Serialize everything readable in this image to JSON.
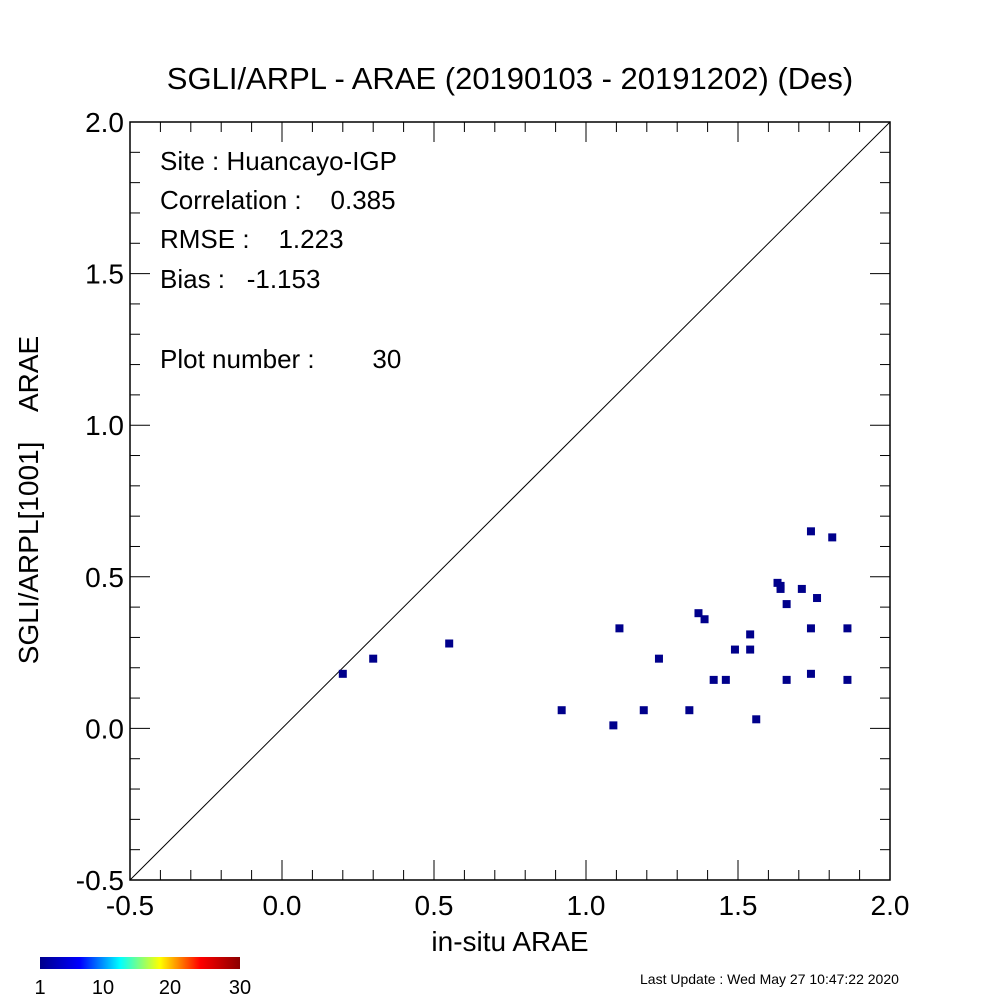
{
  "chart_data": {
    "type": "scatter",
    "title": "SGLI/ARPL - ARAE (20190103 - 20191202) (Des)",
    "xlabel": "in-situ ARAE",
    "ylabel": "SGLI/ARPL[1001]    ARAE",
    "xlim": [
      -0.5,
      2.0
    ],
    "ylim": [
      -0.5,
      2.0
    ],
    "x_ticks": [
      "-0.5",
      "0.0",
      "0.5",
      "1.0",
      "1.5",
      "2.0"
    ],
    "y_ticks": [
      "-0.5",
      "0.0",
      "0.5",
      "1.0",
      "1.5",
      "2.0"
    ],
    "one_to_one_line": true,
    "marker_color": "#00008b",
    "points": [
      {
        "x": 0.2,
        "y": 0.18
      },
      {
        "x": 0.3,
        "y": 0.23
      },
      {
        "x": 0.55,
        "y": 0.28
      },
      {
        "x": 0.92,
        "y": 0.06
      },
      {
        "x": 1.09,
        "y": 0.01
      },
      {
        "x": 1.11,
        "y": 0.33
      },
      {
        "x": 1.19,
        "y": 0.06
      },
      {
        "x": 1.24,
        "y": 0.23
      },
      {
        "x": 1.34,
        "y": 0.06
      },
      {
        "x": 1.37,
        "y": 0.38
      },
      {
        "x": 1.39,
        "y": 0.36
      },
      {
        "x": 1.42,
        "y": 0.16
      },
      {
        "x": 1.46,
        "y": 0.16
      },
      {
        "x": 1.49,
        "y": 0.26
      },
      {
        "x": 1.54,
        "y": 0.31
      },
      {
        "x": 1.54,
        "y": 0.26
      },
      {
        "x": 1.56,
        "y": 0.03
      },
      {
        "x": 1.64,
        "y": 0.47
      },
      {
        "x": 1.64,
        "y": 0.46
      },
      {
        "x": 1.66,
        "y": 0.41
      },
      {
        "x": 1.66,
        "y": 0.16
      },
      {
        "x": 1.71,
        "y": 0.46
      },
      {
        "x": 1.74,
        "y": 0.65
      },
      {
        "x": 1.74,
        "y": 0.33
      },
      {
        "x": 1.74,
        "y": 0.18
      },
      {
        "x": 1.76,
        "y": 0.43
      },
      {
        "x": 1.81,
        "y": 0.63
      },
      {
        "x": 1.86,
        "y": 0.33
      },
      {
        "x": 1.86,
        "y": 0.16
      },
      {
        "x": 1.63,
        "y": 0.48
      }
    ],
    "stats": {
      "site": "Site : Huancayo-IGP",
      "correlation": "Correlation :    0.385",
      "rmse": "RMSE :    1.223",
      "bias": "Bias :   -1.153",
      "plot_number": "Plot number :        30"
    },
    "colorbar": {
      "labels": [
        "1",
        "10",
        "20",
        "30"
      ],
      "colors": [
        "#00008b",
        "#0000ff",
        "#00ffff",
        "#ffff00",
        "#ff0000",
        "#8b0000"
      ]
    }
  },
  "footer": {
    "last_update": "Last Update : Wed May 27 10:47:22 2020"
  }
}
